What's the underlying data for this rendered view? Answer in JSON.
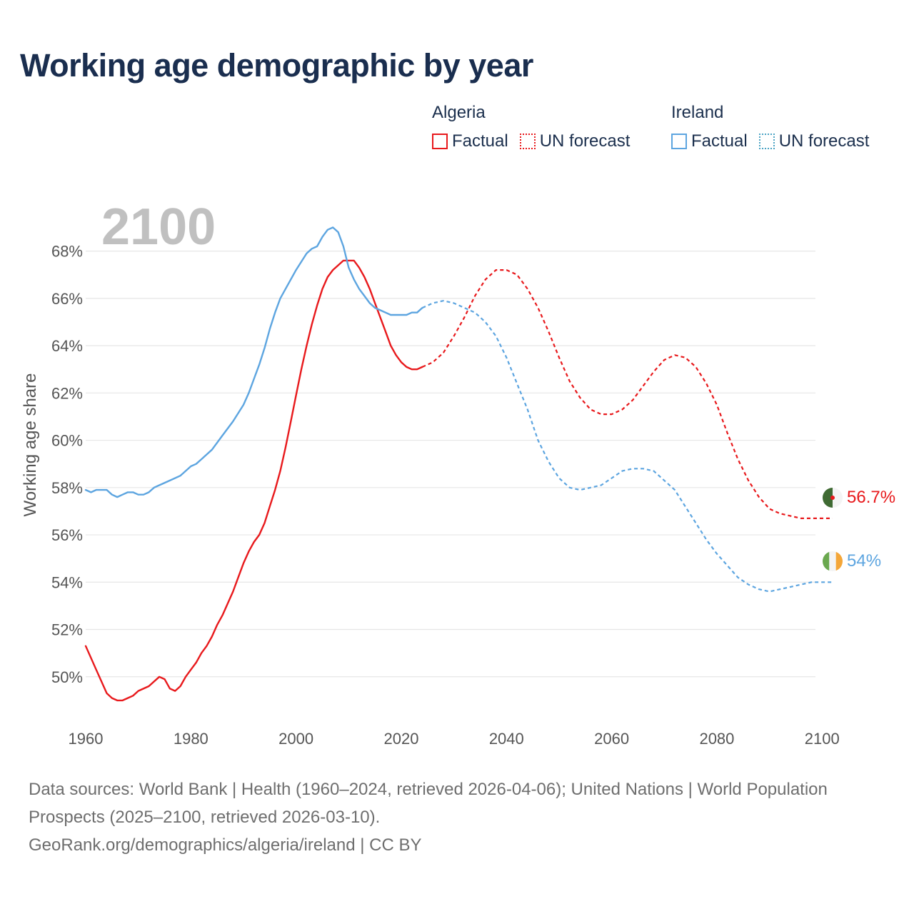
{
  "chart_data": {
    "type": "line",
    "title": "Working age demographic by year",
    "ylabel": "Working age share",
    "xlabel": "",
    "year_label": "2100",
    "xlim": [
      1960,
      2102
    ],
    "ylim": [
      48,
      69.8
    ],
    "x_ticks": [
      1960,
      1980,
      2000,
      2020,
      2040,
      2060,
      2080,
      2100
    ],
    "y_ticks": [
      50,
      52,
      54,
      56,
      58,
      60,
      62,
      64,
      66,
      68
    ],
    "y_tick_format": "{v}%",
    "grid": true,
    "legend": {
      "placement": "top-right",
      "groups": [
        {
          "country": "Algeria",
          "factual_label": "Factual",
          "forecast_label": "UN forecast"
        },
        {
          "country": "Ireland",
          "factual_label": "Factual",
          "forecast_label": "UN forecast"
        }
      ]
    },
    "series": [
      {
        "name": "Algeria",
        "color": "#e8191c",
        "end_label": "56.7%",
        "factual": {
          "x": [
            1960,
            1962,
            1964,
            1965,
            1966,
            1967,
            1968,
            1969,
            1970,
            1972,
            1974,
            1975,
            1976,
            1977,
            1978,
            1979,
            1980,
            1981,
            1982,
            1983,
            1984,
            1985,
            1986,
            1987,
            1988,
            1989,
            1990,
            1991,
            1992,
            1993,
            1994,
            1995,
            1996,
            1997,
            1998,
            1999,
            2000,
            2001,
            2002,
            2003,
            2004,
            2005,
            2006,
            2007,
            2008,
            2009,
            2010,
            2011,
            2012,
            2013,
            2014,
            2015,
            2016,
            2017,
            2018,
            2019,
            2020,
            2021,
            2022,
            2023,
            2024
          ],
          "y": [
            51.3,
            50.3,
            49.3,
            49.1,
            49.0,
            49.0,
            49.1,
            49.2,
            49.4,
            49.6,
            50.0,
            49.9,
            49.5,
            49.4,
            49.6,
            50.0,
            50.3,
            50.6,
            51.0,
            51.3,
            51.7,
            52.2,
            52.6,
            53.1,
            53.6,
            54.2,
            54.8,
            55.3,
            55.7,
            56.0,
            56.5,
            57.2,
            57.9,
            58.7,
            59.7,
            60.8,
            61.9,
            63.0,
            64.0,
            64.9,
            65.7,
            66.4,
            66.9,
            67.2,
            67.4,
            67.6,
            67.6,
            67.6,
            67.3,
            66.9,
            66.4,
            65.8,
            65.2,
            64.6,
            64.0,
            63.6,
            63.3,
            63.1,
            63.0,
            63.0,
            63.1
          ]
        },
        "forecast": {
          "x": [
            2024,
            2026,
            2028,
            2030,
            2032,
            2034,
            2036,
            2038,
            2040,
            2042,
            2044,
            2046,
            2048,
            2050,
            2052,
            2054,
            2056,
            2058,
            2060,
            2062,
            2064,
            2066,
            2068,
            2070,
            2072,
            2074,
            2076,
            2078,
            2080,
            2082,
            2084,
            2086,
            2088,
            2090,
            2092,
            2094,
            2096,
            2098,
            2100,
            2102
          ],
          "y": [
            63.1,
            63.3,
            63.7,
            64.4,
            65.2,
            66.1,
            66.8,
            67.2,
            67.2,
            67.0,
            66.4,
            65.6,
            64.6,
            63.5,
            62.5,
            61.8,
            61.3,
            61.1,
            61.1,
            61.3,
            61.7,
            62.3,
            62.9,
            63.4,
            63.6,
            63.5,
            63.1,
            62.4,
            61.5,
            60.3,
            59.2,
            58.3,
            57.6,
            57.1,
            56.9,
            56.8,
            56.7,
            56.7,
            56.7,
            56.7
          ]
        }
      },
      {
        "name": "Ireland",
        "color": "#5da5e0",
        "end_label": "54%",
        "factual": {
          "x": [
            1960,
            1961,
            1962,
            1963,
            1964,
            1965,
            1966,
            1967,
            1968,
            1969,
            1970,
            1971,
            1972,
            1973,
            1974,
            1976,
            1978,
            1980,
            1981,
            1982,
            1984,
            1986,
            1988,
            1990,
            1991,
            1992,
            1993,
            1994,
            1995,
            1996,
            1997,
            1998,
            2000,
            2002,
            2003,
            2004,
            2005,
            2006,
            2007,
            2008,
            2009,
            2010,
            2011,
            2012,
            2013,
            2014,
            2015,
            2016,
            2017,
            2018,
            2019,
            2020,
            2021,
            2022,
            2023,
            2024
          ],
          "y": [
            57.9,
            57.8,
            57.9,
            57.9,
            57.9,
            57.7,
            57.6,
            57.7,
            57.8,
            57.8,
            57.7,
            57.7,
            57.8,
            58.0,
            58.1,
            58.3,
            58.5,
            58.9,
            59.0,
            59.2,
            59.6,
            60.2,
            60.8,
            61.5,
            62.0,
            62.6,
            63.2,
            63.9,
            64.7,
            65.4,
            66.0,
            66.4,
            67.2,
            67.9,
            68.1,
            68.2,
            68.6,
            68.9,
            69.0,
            68.8,
            68.2,
            67.3,
            66.8,
            66.4,
            66.1,
            65.8,
            65.6,
            65.5,
            65.4,
            65.3,
            65.3,
            65.3,
            65.3,
            65.4,
            65.4,
            65.6
          ]
        },
        "forecast": {
          "x": [
            2024,
            2026,
            2028,
            2030,
            2032,
            2034,
            2036,
            2038,
            2040,
            2042,
            2044,
            2046,
            2048,
            2050,
            2052,
            2054,
            2056,
            2058,
            2060,
            2062,
            2064,
            2066,
            2068,
            2070,
            2072,
            2074,
            2076,
            2078,
            2080,
            2082,
            2084,
            2086,
            2088,
            2090,
            2092,
            2094,
            2096,
            2098,
            2100,
            2102
          ],
          "y": [
            65.6,
            65.8,
            65.9,
            65.8,
            65.6,
            65.4,
            65.0,
            64.4,
            63.5,
            62.4,
            61.3,
            60.0,
            59.1,
            58.4,
            58.0,
            57.9,
            58.0,
            58.1,
            58.4,
            58.7,
            58.8,
            58.8,
            58.7,
            58.3,
            57.9,
            57.2,
            56.5,
            55.8,
            55.2,
            54.7,
            54.2,
            53.9,
            53.7,
            53.6,
            53.7,
            53.8,
            53.9,
            54.0,
            54.0,
            54.0
          ]
        }
      }
    ]
  },
  "footer": {
    "line1": "Data sources: World Bank | Health (1960–2024, retrieved 2026-04-06); United Nations | World Population Prospects (2025–2100, retrieved 2026-03-10).",
    "line2": "GeoRank.org/demographics/algeria/ireland | CC BY"
  }
}
